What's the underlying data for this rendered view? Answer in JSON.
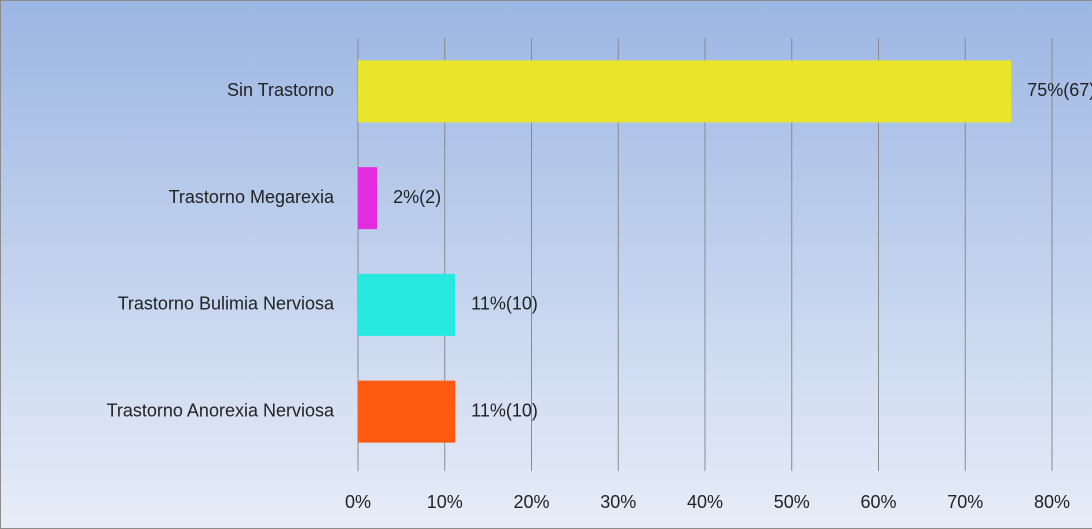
{
  "chart_data": {
    "type": "barh",
    "categories": [
      "Sin Trastorno",
      "Trastorno Megarexia",
      "Trastorno Bulimia Nerviosa",
      "Trastorno Anorexia Nerviosa"
    ],
    "values": [
      75.3,
      2.2,
      11.2,
      11.2
    ],
    "value_labels": [
      "75%(67)",
      "2%(2)",
      "11%(10)",
      "11%(10)"
    ],
    "colors": [
      "#e8e52a",
      "#e22ee0",
      "#27e9e0",
      "#ff5a12"
    ],
    "xlim": [
      0,
      80
    ],
    "xticks": [
      {
        "value": 0,
        "label": "0%"
      },
      {
        "value": 10,
        "label": "10%"
      },
      {
        "value": 20,
        "label": "20%"
      },
      {
        "value": 30,
        "label": "30%"
      },
      {
        "value": 40,
        "label": "40%"
      },
      {
        "value": 50,
        "label": "50%"
      },
      {
        "value": 60,
        "label": "60%"
      },
      {
        "value": 70,
        "label": "70%"
      },
      {
        "value": 80,
        "label": "80%"
      }
    ],
    "grid": true
  }
}
